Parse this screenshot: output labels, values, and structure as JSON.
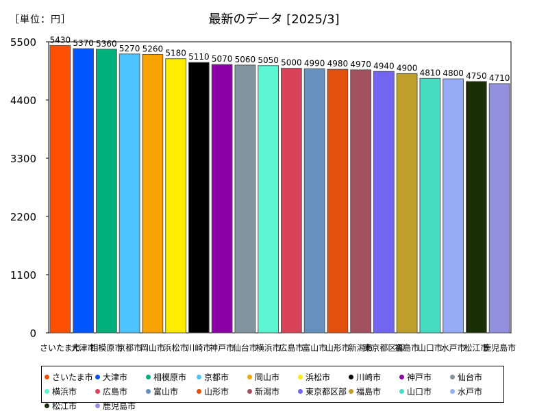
{
  "header": {
    "unit_label": "［単位：円］",
    "title": "最新のデータ [2025/3]"
  },
  "chart_data": {
    "type": "bar",
    "title": "最新のデータ [2025/3]",
    "unit": "［単位：円］",
    "ylim": [
      0,
      5500
    ],
    "yticks": [
      0,
      1100,
      2200,
      3300,
      4400,
      5500
    ],
    "grid": false,
    "legend_position": "bottom",
    "categories": [
      "さいたま市",
      "大津市",
      "相模原市",
      "京都市",
      "岡山市",
      "浜松市",
      "川崎市",
      "神戸市",
      "仙台市",
      "横浜市",
      "広島市",
      "富山市",
      "山形市",
      "新潟市",
      "東京都区部",
      "福島市",
      "山口市",
      "水戸市",
      "松江市",
      "鹿児島市"
    ],
    "values": [
      5430,
      5370,
      5360,
      5270,
      5260,
      5180,
      5110,
      5070,
      5060,
      5050,
      5000,
      4990,
      4980,
      4970,
      4940,
      4900,
      4810,
      4800,
      4750,
      4710
    ],
    "colors": [
      "#ff4f00",
      "#0055ff",
      "#00b07a",
      "#4dc3ff",
      "#f7a400",
      "#ffec00",
      "#000000",
      "#8b00a6",
      "#8294a0",
      "#5cf7d2",
      "#d9435a",
      "#6690bd",
      "#e34f0c",
      "#a3505f",
      "#7266f0",
      "#bf9f2c",
      "#45dcc2",
      "#96acf7",
      "#1b2f06",
      "#9390e0"
    ]
  }
}
